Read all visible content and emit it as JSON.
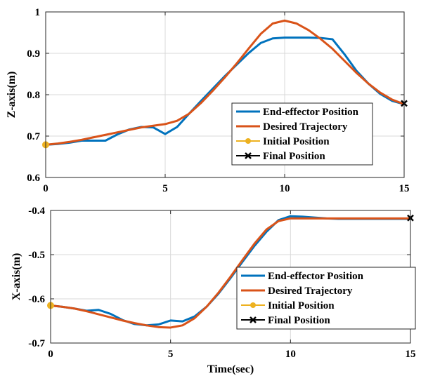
{
  "chart_data": [
    {
      "type": "line",
      "id": "z",
      "title": "",
      "xlabel": "",
      "ylabel": "Z-axis(m)",
      "xlim": [
        0,
        15
      ],
      "ylim": [
        0.6,
        1.0
      ],
      "xticks": [
        0,
        5,
        10,
        15
      ],
      "xtick_labels": [
        "0",
        "5",
        "10",
        "15"
      ],
      "yticks": [
        0.6,
        0.7,
        0.8,
        0.9,
        1.0
      ],
      "ytick_labels": [
        "0.6",
        "0.7",
        "0.8",
        "0.9",
        "1"
      ],
      "grid": true,
      "legend_position": "lower-right",
      "series": [
        {
          "name": "End-effector Position",
          "color": "#0072BD",
          "x": [
            0,
            0.5,
            1,
            1.5,
            2,
            2.5,
            3,
            3.5,
            4,
            4.5,
            5,
            5.5,
            6,
            6.5,
            7,
            7.5,
            8,
            8.5,
            9,
            9.5,
            10,
            10.5,
            11,
            11.5,
            12,
            12.5,
            13,
            13.5,
            14,
            14.5,
            15
          ],
          "y": [
            0.679,
            0.681,
            0.684,
            0.689,
            0.689,
            0.689,
            0.704,
            0.716,
            0.722,
            0.721,
            0.705,
            0.722,
            0.754,
            0.785,
            0.815,
            0.845,
            0.873,
            0.901,
            0.925,
            0.936,
            0.938,
            0.938,
            0.938,
            0.937,
            0.934,
            0.898,
            0.858,
            0.827,
            0.802,
            0.785,
            0.777
          ]
        },
        {
          "name": "Desired Trajectory",
          "color": "#D95319",
          "x": [
            0,
            0.5,
            1,
            1.5,
            2,
            2.5,
            3,
            3.5,
            4,
            4.5,
            5,
            5.5,
            6,
            6.5,
            7,
            7.5,
            8,
            8.5,
            9,
            9.5,
            10,
            10.5,
            11,
            11.5,
            12,
            12.5,
            13,
            13.5,
            14,
            14.5,
            15
          ],
          "y": [
            0.679,
            0.682,
            0.686,
            0.691,
            0.697,
            0.703,
            0.709,
            0.715,
            0.721,
            0.725,
            0.729,
            0.737,
            0.754,
            0.78,
            0.81,
            0.842,
            0.876,
            0.912,
            0.947,
            0.972,
            0.979,
            0.972,
            0.956,
            0.935,
            0.911,
            0.882,
            0.853,
            0.827,
            0.805,
            0.788,
            0.777
          ]
        },
        {
          "name": "Initial Position",
          "color": "#EDB120",
          "marker": "circle",
          "x": [
            0
          ],
          "y": [
            0.679
          ]
        },
        {
          "name": "Final Position",
          "color": "#000000",
          "marker": "x",
          "x": [
            15
          ],
          "y": [
            0.779
          ]
        }
      ]
    },
    {
      "type": "line",
      "id": "x",
      "title": "",
      "xlabel": "Time(sec)",
      "ylabel": "X-axis(m)",
      "xlim": [
        0,
        15
      ],
      "ylim": [
        -0.7,
        -0.4
      ],
      "xticks": [
        0,
        5,
        10,
        15
      ],
      "xtick_labels": [
        "0",
        "5",
        "10",
        "15"
      ],
      "yticks": [
        -0.7,
        -0.6,
        -0.5,
        -0.4
      ],
      "ytick_labels": [
        "-0.7",
        "-0.6",
        "-0.5",
        "-0.4"
      ],
      "grid": true,
      "legend_position": "lower-right",
      "series": [
        {
          "name": "End-effector Position",
          "color": "#0072BD",
          "x": [
            0,
            0.5,
            1,
            1.5,
            2,
            2.5,
            3,
            3.5,
            4,
            4.5,
            5,
            5.5,
            6,
            6.5,
            7,
            7.5,
            8,
            8.5,
            9,
            9.5,
            10,
            10.5,
            11,
            11.5,
            12,
            12.5,
            13,
            13.5,
            14,
            14.5,
            15
          ],
          "y": [
            -0.615,
            -0.618,
            -0.622,
            -0.627,
            -0.625,
            -0.634,
            -0.648,
            -0.657,
            -0.66,
            -0.658,
            -0.649,
            -0.651,
            -0.64,
            -0.618,
            -0.588,
            -0.553,
            -0.516,
            -0.48,
            -0.448,
            -0.422,
            -0.413,
            -0.414,
            -0.416,
            -0.418,
            -0.419,
            -0.419,
            -0.419,
            -0.419,
            -0.419,
            -0.419,
            -0.419
          ]
        },
        {
          "name": "Desired Trajectory",
          "color": "#D95319",
          "x": [
            0,
            0.5,
            1,
            1.5,
            2,
            2.5,
            3,
            3.5,
            4,
            4.5,
            5,
            5.5,
            6,
            6.5,
            7,
            7.5,
            8,
            8.5,
            9,
            9.5,
            10,
            10.5,
            11,
            11.5,
            12,
            12.5,
            13,
            13.5,
            14,
            14.5,
            15
          ],
          "y": [
            -0.615,
            -0.618,
            -0.622,
            -0.628,
            -0.635,
            -0.642,
            -0.649,
            -0.655,
            -0.66,
            -0.664,
            -0.665,
            -0.66,
            -0.644,
            -0.618,
            -0.586,
            -0.55,
            -0.512,
            -0.475,
            -0.443,
            -0.424,
            -0.418,
            -0.418,
            -0.418,
            -0.418,
            -0.418,
            -0.418,
            -0.418,
            -0.418,
            -0.418,
            -0.418,
            -0.418
          ]
        },
        {
          "name": "Initial Position",
          "color": "#EDB120",
          "marker": "circle",
          "x": [
            0
          ],
          "y": [
            -0.615
          ]
        },
        {
          "name": "Final Position",
          "color": "#000000",
          "marker": "x",
          "x": [
            15
          ],
          "y": [
            -0.417
          ]
        }
      ]
    }
  ]
}
